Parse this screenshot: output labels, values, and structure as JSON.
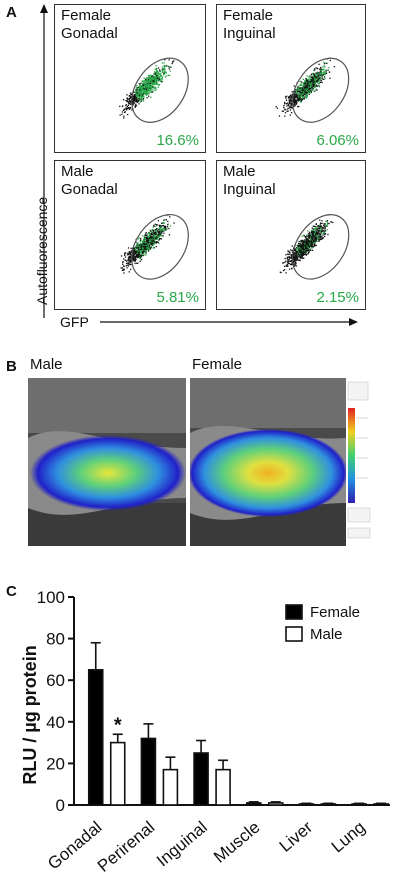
{
  "panel_a": {
    "letter": "A",
    "y_axis_label": "Autofluorescence",
    "x_axis_label": "GFP",
    "plots": [
      {
        "label": "Female\nGonadal",
        "percent": "16.6%"
      },
      {
        "label": "Female\nInguinal",
        "percent": "6.06%"
      },
      {
        "label": "Male\nGonadal",
        "percent": "5.81%"
      },
      {
        "label": "Male\nInguinal",
        "percent": "2.15%"
      }
    ]
  },
  "panel_b": {
    "letter": "B",
    "images": [
      {
        "title": "Male"
      },
      {
        "title": "Female"
      }
    ]
  },
  "panel_c": {
    "letter": "C",
    "significance_marker": "*"
  },
  "colors": {
    "gated_green": "#2aa84a",
    "female_bar": "#000000",
    "male_bar": "#ffffff"
  },
  "chart_data": {
    "type": "bar",
    "categories": [
      "Gonadal",
      "Perirenal",
      "Inguinal",
      "Muscle",
      "Liver",
      "Lung"
    ],
    "series": [
      {
        "name": "Female",
        "values": [
          65,
          32,
          25,
          1,
          0.5,
          0.5
        ],
        "errors": [
          13,
          7,
          6,
          0.5,
          0.3,
          0.3
        ]
      },
      {
        "name": "Male",
        "values": [
          30,
          17,
          17,
          1,
          0.5,
          0.5
        ],
        "errors": [
          4,
          6,
          4.5,
          0.5,
          0.3,
          0.3
        ]
      }
    ],
    "ylabel": "RLU / µg protein",
    "ylim": [
      0,
      100
    ],
    "yticks": [
      "0",
      "20",
      "40",
      "60",
      "80",
      "100"
    ],
    "legend_position": "top-right",
    "annotations": [
      {
        "category": "Gonadal",
        "series": "Male",
        "text": "*"
      }
    ]
  }
}
